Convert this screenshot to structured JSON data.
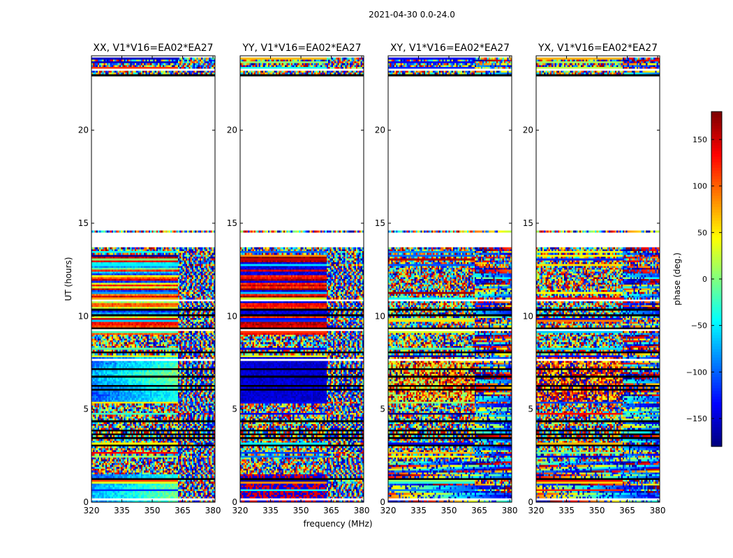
{
  "figure": {
    "suptitle": "2021-04-30 0.0-24.0",
    "xlabel": "frequency (MHz)",
    "ylabel": "UT (hours)"
  },
  "colors": {
    "colormap": "jet",
    "background": "#ffffff",
    "frame": "#000000"
  },
  "chart_data": {
    "type": "heatmap",
    "panels": [
      {
        "title": "XX, V1*V16=EA02*EA27",
        "mode": "XX"
      },
      {
        "title": "YY, V1*V16=EA02*EA27",
        "mode": "YY"
      },
      {
        "title": "XY, V1*V16=EA02*EA27",
        "mode": "XY"
      },
      {
        "title": "YX, V1*V16=EA02*EA27",
        "mode": "YX"
      }
    ],
    "xlim": [
      320,
      381
    ],
    "ylim": [
      0,
      24
    ],
    "xticks": [
      320,
      335,
      350,
      365,
      380
    ],
    "yticks": [
      0,
      5,
      10,
      15,
      20
    ],
    "colorbar": {
      "label": "phase (deg.)",
      "range": [
        -180,
        180
      ],
      "ticks": [
        -150,
        -100,
        -50,
        0,
        50,
        100,
        150
      ],
      "ticklabels": [
        "−150",
        "−100",
        "−50",
        "0",
        "50",
        "100",
        "150"
      ]
    },
    "data_coverage_hours": [
      [
        0.0,
        13.7
      ],
      [
        14.55,
        14.65
      ],
      [
        22.9,
        23.9
      ]
    ],
    "empty_hours": [
      [
        13.7,
        14.55
      ],
      [
        14.65,
        22.9
      ]
    ]
  }
}
